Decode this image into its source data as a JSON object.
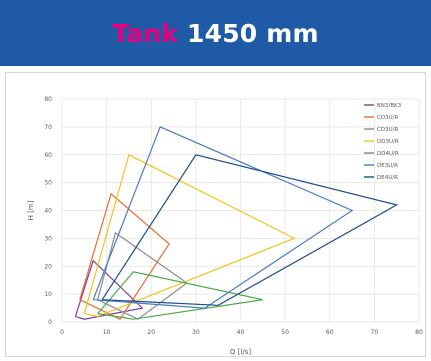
{
  "header": {
    "title_accent": "Tank",
    "title_rest": "1450 mm",
    "background_color": "#1f5aa6",
    "accent_color": "#e6007e"
  },
  "chart_data": {
    "type": "scatter",
    "xlabel": "Q [l/s]",
    "ylabel": "H [m]",
    "xlim": [
      0,
      80
    ],
    "ylim": [
      0,
      80
    ],
    "xticks": [
      "0",
      "10",
      "20",
      "30",
      "40",
      "50",
      "60",
      "70",
      "80"
    ],
    "yticks": [
      "0",
      "10",
      "20",
      "30",
      "40",
      "50",
      "60",
      "70",
      "80"
    ],
    "grid": true,
    "legend_position": "top-right",
    "series": [
      {
        "name": "BN3/BK3",
        "color": "#7b3f99",
        "points": [
          [
            3,
            2
          ],
          [
            7,
            22
          ],
          [
            18,
            5
          ],
          [
            5,
            1
          ],
          [
            3,
            2
          ]
        ]
      },
      {
        "name": "CD3U/R",
        "color": "#ec6c2e",
        "points": [
          [
            4,
            8
          ],
          [
            11,
            46
          ],
          [
            24,
            28
          ],
          [
            13,
            1
          ],
          [
            4,
            8
          ]
        ]
      },
      {
        "name": "CD3U/R",
        "color": "#8c8c8c",
        "points": [
          [
            8,
            8
          ],
          [
            12,
            32
          ],
          [
            28,
            14
          ],
          [
            17,
            1
          ],
          [
            8,
            8
          ]
        ]
      },
      {
        "name": "DD3U/R",
        "color": "#f4c21c",
        "points": [
          [
            5,
            3
          ],
          [
            15,
            60
          ],
          [
            52,
            30
          ],
          [
            8,
            2
          ],
          [
            5,
            3
          ]
        ]
      },
      {
        "name": "DD4U/R",
        "color": "#4aa84a",
        "points": [
          [
            8,
            3
          ],
          [
            16,
            18
          ],
          [
            45,
            8
          ],
          [
            16,
            1
          ],
          [
            8,
            3
          ]
        ]
      },
      {
        "name": "DE3U/R",
        "color": "#4a7bc0",
        "points": [
          [
            7,
            8
          ],
          [
            22,
            70
          ],
          [
            65,
            40
          ],
          [
            32,
            5
          ],
          [
            7,
            8
          ]
        ]
      },
      {
        "name": "DE4U/R",
        "color": "#1c4b8c",
        "points": [
          [
            9,
            8
          ],
          [
            30,
            60
          ],
          [
            75,
            42
          ],
          [
            35,
            6
          ],
          [
            9,
            8
          ]
        ]
      }
    ]
  }
}
